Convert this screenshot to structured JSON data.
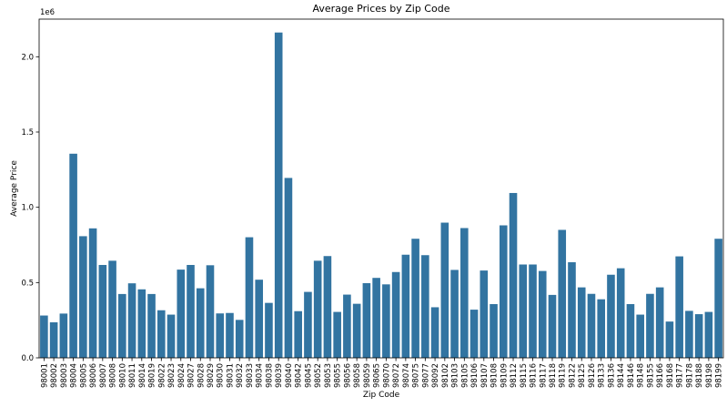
{
  "chart_data": {
    "type": "bar",
    "title": "Average Prices by Zip Code",
    "xlabel": "Zip Code",
    "ylabel": "Average Price",
    "y_offset_text": "1e6",
    "ylim": [
      0,
      2250000
    ],
    "yticks": [
      0,
      500000,
      1000000,
      1500000,
      2000000
    ],
    "ytick_labels": [
      "0.0",
      "0.5",
      "1.0",
      "1.5",
      "2.0"
    ],
    "grid": false,
    "bar_color": "#3274a1",
    "categories": [
      "98001",
      "98002",
      "98003",
      "98004",
      "98005",
      "98006",
      "98007",
      "98008",
      "98010",
      "98011",
      "98014",
      "98019",
      "98022",
      "98023",
      "98024",
      "98027",
      "98028",
      "98029",
      "98030",
      "98031",
      "98032",
      "98033",
      "98034",
      "98038",
      "98039",
      "98040",
      "98042",
      "98045",
      "98052",
      "98053",
      "98055",
      "98056",
      "98058",
      "98059",
      "98065",
      "98070",
      "98072",
      "98074",
      "98075",
      "98077",
      "98092",
      "98102",
      "98103",
      "98105",
      "98106",
      "98107",
      "98108",
      "98109",
      "98112",
      "98115",
      "98116",
      "98117",
      "98118",
      "98119",
      "98122",
      "98125",
      "98126",
      "98133",
      "98136",
      "98144",
      "98146",
      "98148",
      "98155",
      "98166",
      "98168",
      "98177",
      "98178",
      "98188",
      "98198",
      "98199"
    ],
    "values": [
      281000,
      236000,
      294000,
      1356000,
      808000,
      860000,
      617000,
      645000,
      424000,
      495000,
      455000,
      424000,
      316000,
      287000,
      586000,
      617000,
      462000,
      615000,
      295000,
      298000,
      252000,
      801000,
      519000,
      365000,
      2161000,
      1195000,
      310000,
      438000,
      645000,
      676000,
      305000,
      420000,
      359000,
      496000,
      531000,
      488000,
      570000,
      685000,
      791000,
      682000,
      336000,
      898000,
      584000,
      862000,
      320000,
      580000,
      357000,
      880000,
      1095000,
      620000,
      620000,
      577000,
      418000,
      850000,
      635000,
      468000,
      425000,
      389000,
      552000,
      595000,
      357000,
      287000,
      425000,
      468000,
      241000,
      674000,
      312000,
      290000,
      305000,
      791000
    ]
  }
}
